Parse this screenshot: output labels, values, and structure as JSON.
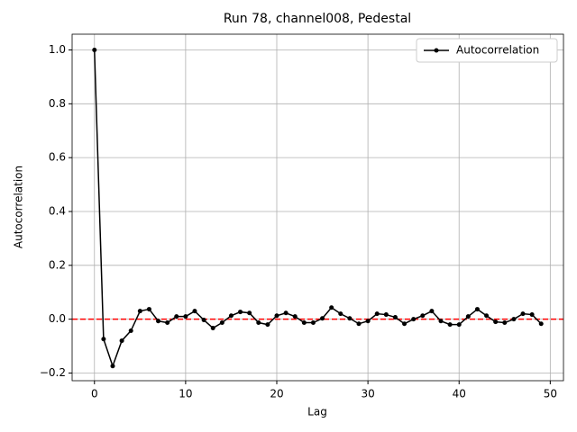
{
  "chart_data": {
    "type": "line",
    "title": "Run 78, channel008, Pedestal",
    "x_label": "Lag",
    "y_label": "Autocorrelation",
    "x": [
      0,
      1,
      2,
      3,
      4,
      5,
      6,
      7,
      8,
      9,
      10,
      11,
      12,
      13,
      14,
      15,
      16,
      17,
      18,
      19,
      20,
      21,
      22,
      23,
      24,
      25,
      26,
      27,
      28,
      29,
      30,
      31,
      32,
      33,
      34,
      35,
      36,
      37,
      38,
      39,
      40,
      41,
      42,
      43,
      44,
      45,
      46,
      47,
      48,
      49
    ],
    "series": [
      {
        "name": "Autocorrelation",
        "color": "#000000",
        "values": [
          1.0,
          -0.074,
          -0.174,
          -0.08,
          -0.043,
          0.03,
          0.037,
          -0.007,
          -0.013,
          0.01,
          0.01,
          0.03,
          -0.003,
          -0.033,
          -0.013,
          0.013,
          0.027,
          0.023,
          -0.013,
          -0.02,
          0.013,
          0.023,
          0.01,
          -0.013,
          -0.013,
          0.003,
          0.043,
          0.02,
          0.003,
          -0.017,
          -0.007,
          0.02,
          0.017,
          0.007,
          -0.017,
          0,
          0.013,
          0.03,
          -0.007,
          -0.02,
          -0.02,
          0.01,
          0.037,
          0.013,
          -0.01,
          -0.013,
          0,
          0.02,
          0.017,
          -0.017
        ]
      }
    ],
    "hline": 0,
    "hline_color": "#ff0000",
    "xlim": [
      -2.45,
      51.45
    ],
    "xticks": [
      0,
      10,
      20,
      30,
      40,
      50
    ],
    "ylim": [
      -0.2285,
      1.0585
    ],
    "yticks": [
      {
        "value": -0.2,
        "label": "−0.2"
      },
      {
        "value": 0,
        "label": "0.0"
      },
      {
        "value": 0.2,
        "label": "0.2"
      },
      {
        "value": 0.4,
        "label": "0.4"
      },
      {
        "value": 0.6,
        "label": "0.6"
      },
      {
        "value": 0.8,
        "label": "0.8"
      },
      {
        "value": 1.0,
        "label": "1.0"
      }
    ],
    "grid": true,
    "legend": "upper right"
  }
}
